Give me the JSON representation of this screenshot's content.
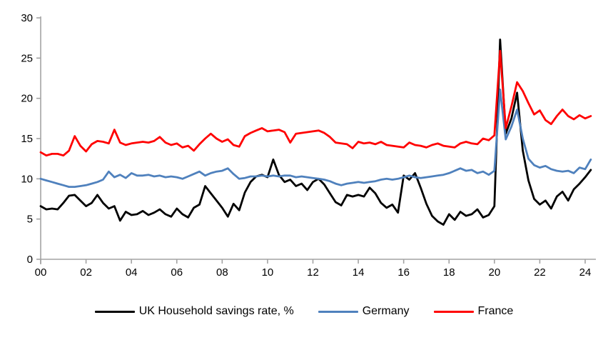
{
  "chart": {
    "background": "#ffffff",
    "axis_color": "#a3a3a3",
    "tick_label_color": "#000000",
    "tick_font_size": 15,
    "legend_font_size": 16
  },
  "chart_data": {
    "type": "line",
    "title": "",
    "xlabel": "",
    "ylabel": "",
    "grid": false,
    "legend_position": "bottom",
    "ylim": [
      0,
      30
    ],
    "y_ticks": [
      0,
      5,
      10,
      15,
      20,
      25,
      30
    ],
    "x_tick_labels": [
      "00",
      "02",
      "04",
      "06",
      "08",
      "10",
      "12",
      "14",
      "16",
      "18",
      "20",
      "22",
      "24"
    ],
    "x_start_year": 2000,
    "points_per_year": 4,
    "x_units": "quarterly, 2000Q1 - 2024Q2",
    "series": [
      {
        "name": "UK Household savings rate, %",
        "color": "#000000",
        "values": [
          6.6,
          6.2,
          6.3,
          6.2,
          7.0,
          7.9,
          8.0,
          7.3,
          6.6,
          7.0,
          8.0,
          7.0,
          6.3,
          6.6,
          4.8,
          5.9,
          5.5,
          5.6,
          6.0,
          5.5,
          5.8,
          6.2,
          5.6,
          5.3,
          6.3,
          5.6,
          5.2,
          6.4,
          6.8,
          9.1,
          8.2,
          7.3,
          6.4,
          5.3,
          6.9,
          6.1,
          8.3,
          9.6,
          10.3,
          10.5,
          10.2,
          12.4,
          10.5,
          9.6,
          9.9,
          9.1,
          9.4,
          8.6,
          9.6,
          10.0,
          9.3,
          8.2,
          7.1,
          6.7,
          8.0,
          7.8,
          8.0,
          7.8,
          8.9,
          8.2,
          7.0,
          6.4,
          6.8,
          5.8,
          10.4,
          9.9,
          10.7,
          8.9,
          6.9,
          5.4,
          4.7,
          4.3,
          5.6,
          4.9,
          5.9,
          5.4,
          5.6,
          6.2,
          5.2,
          5.5,
          6.6,
          27.3,
          15.6,
          17.5,
          20.7,
          13.5,
          9.8,
          7.5,
          6.8,
          7.3,
          6.3,
          7.8,
          8.4,
          7.3,
          8.7,
          9.4,
          10.2,
          11.1
        ]
      },
      {
        "name": "Germany",
        "color": "#4f81bd",
        "values": [
          10.0,
          9.8,
          9.6,
          9.4,
          9.2,
          9.0,
          9.0,
          9.1,
          9.2,
          9.4,
          9.6,
          9.9,
          10.9,
          10.2,
          10.5,
          10.1,
          10.7,
          10.4,
          10.4,
          10.5,
          10.3,
          10.4,
          10.2,
          10.3,
          10.2,
          10.0,
          10.3,
          10.6,
          10.9,
          10.4,
          10.7,
          10.9,
          11.0,
          11.3,
          10.6,
          10.0,
          10.1,
          10.3,
          10.3,
          10.4,
          10.3,
          10.4,
          10.3,
          10.4,
          10.4,
          10.2,
          10.3,
          10.2,
          10.1,
          10.0,
          9.9,
          9.7,
          9.4,
          9.2,
          9.4,
          9.5,
          9.6,
          9.5,
          9.6,
          9.7,
          9.9,
          10.0,
          9.9,
          10.0,
          10.2,
          10.4,
          10.2,
          10.1,
          10.2,
          10.3,
          10.4,
          10.5,
          10.7,
          11.0,
          11.3,
          11.0,
          11.1,
          10.7,
          10.9,
          10.5,
          11.0,
          21.1,
          14.9,
          16.5,
          18.6,
          15.0,
          12.5,
          11.7,
          11.4,
          11.6,
          11.2,
          11.0,
          10.9,
          11.0,
          10.7,
          11.4,
          11.2,
          12.4
        ]
      },
      {
        "name": "France",
        "color": "#ff0000",
        "values": [
          13.3,
          12.9,
          13.1,
          13.1,
          12.9,
          13.5,
          15.3,
          14.1,
          13.4,
          14.3,
          14.7,
          14.6,
          14.4,
          16.1,
          14.5,
          14.2,
          14.4,
          14.5,
          14.6,
          14.5,
          14.7,
          15.2,
          14.5,
          14.2,
          14.4,
          13.9,
          14.1,
          13.5,
          14.3,
          15.0,
          15.6,
          15.0,
          14.6,
          14.9,
          14.2,
          14.0,
          15.3,
          15.7,
          16.0,
          16.3,
          15.9,
          16.0,
          16.1,
          15.8,
          14.5,
          15.6,
          15.7,
          15.8,
          15.9,
          16.0,
          15.7,
          15.2,
          14.5,
          14.4,
          14.3,
          13.8,
          14.6,
          14.4,
          14.5,
          14.3,
          14.6,
          14.2,
          14.1,
          14.0,
          13.9,
          14.5,
          14.2,
          14.1,
          13.9,
          14.2,
          14.4,
          14.1,
          14.0,
          13.9,
          14.4,
          14.6,
          14.4,
          14.3,
          15.0,
          14.8,
          15.4,
          25.9,
          16.3,
          19.0,
          22.0,
          20.9,
          19.4,
          18.0,
          18.5,
          17.3,
          16.8,
          17.8,
          18.6,
          17.8,
          17.4,
          17.9,
          17.5,
          17.8
        ]
      }
    ]
  }
}
